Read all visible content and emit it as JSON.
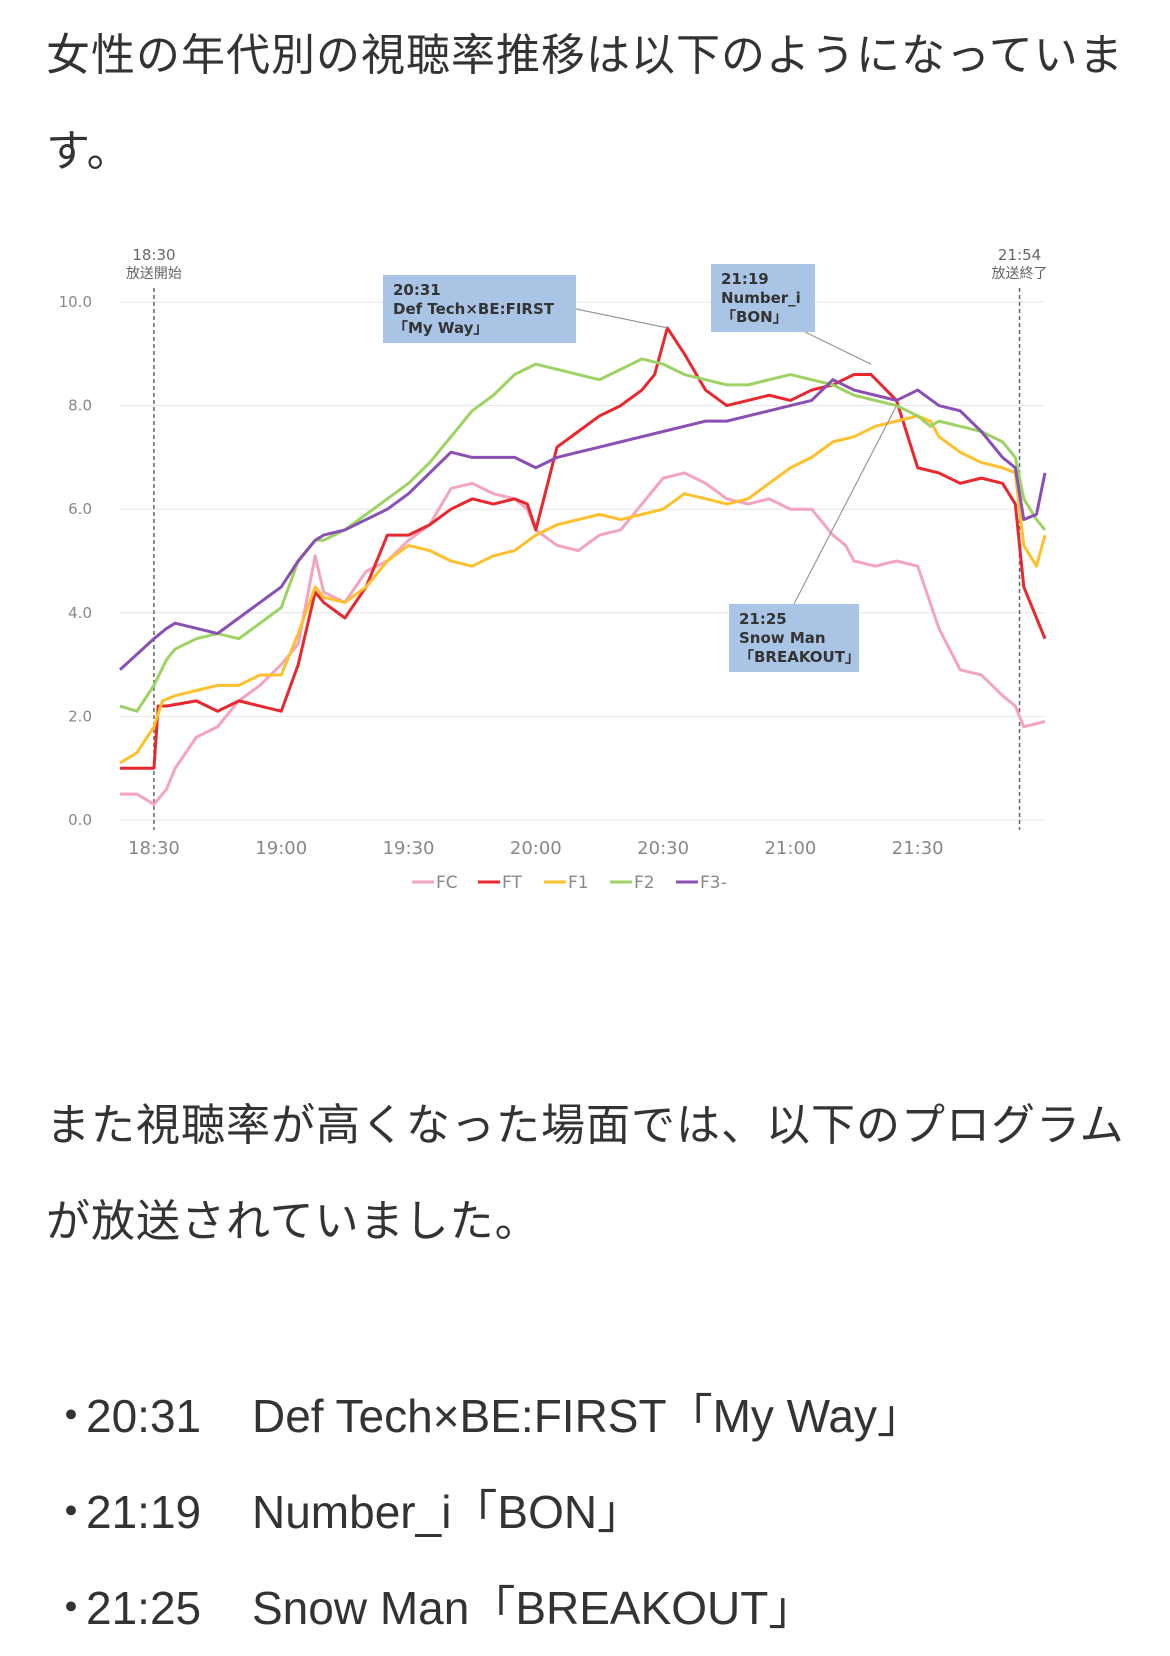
{
  "intro_text": "女性の年代別の視聴率推移は以下のようになっています。",
  "mid_text": "また視聴率が高くなった場面では、以下のプログラムが放送されていました。",
  "programs": [
    {
      "bullet": "・",
      "time": "20:31",
      "title": "Def Tech×BE:FIRST「My Way」"
    },
    {
      "bullet": "・",
      "time": "21:19",
      "title": "Number_i「BON」"
    },
    {
      "bullet": "・",
      "time": "21:25",
      "title": "Snow Man「BREAKOUT」"
    }
  ],
  "chart_data": {
    "type": "line",
    "ylim": [
      0,
      10
    ],
    "yticks": [
      "0.0",
      "2.0",
      "4.0",
      "6.0",
      "8.0",
      "10.0"
    ],
    "xticks": [
      "18:30",
      "19:00",
      "19:30",
      "20:00",
      "20:30",
      "21:00",
      "21:30"
    ],
    "x_unit": "minutes from 18:30",
    "grid": true,
    "legend_position": "bottom",
    "markers": [
      {
        "x": 0,
        "time": "18:30",
        "label": "放送開始"
      },
      {
        "x": 204,
        "time": "21:54",
        "label": "放送終了"
      }
    ],
    "annotations": [
      {
        "lines": [
          "20:31",
          "Def Tech×BE:FIRST",
          "「My Way」"
        ],
        "x": 121,
        "y": 9.5
      },
      {
        "lines": [
          "21:19",
          "Number_i",
          "「BON」"
        ],
        "x": 169,
        "y": 8.8
      },
      {
        "lines": [
          "21:25",
          "Snow Man",
          "「BREAKOUT」"
        ],
        "x": 175,
        "y": 8.0
      }
    ],
    "colors": {
      "FC": "#f4a3c0",
      "FT": "#e8282e",
      "F1": "#ffc02e",
      "F2": "#9cd363",
      "F3-": "#8a4fb3"
    },
    "series": [
      {
        "name": "FC",
        "x": [
          -8,
          -4,
          0,
          3,
          5,
          10,
          15,
          20,
          25,
          30,
          34,
          38,
          40,
          45,
          50,
          55,
          60,
          65,
          70,
          75,
          80,
          85,
          88,
          90,
          95,
          100,
          105,
          110,
          115,
          120,
          125,
          130,
          135,
          140,
          145,
          150,
          155,
          160,
          163,
          165,
          170,
          175,
          180,
          185,
          190,
          195,
          200,
          203,
          205,
          210
        ],
        "y": [
          0.5,
          0.5,
          0.3,
          0.6,
          1.0,
          1.6,
          1.8,
          2.3,
          2.6,
          3.0,
          3.4,
          5.1,
          4.4,
          4.2,
          4.8,
          5.0,
          5.4,
          5.7,
          6.4,
          6.5,
          6.3,
          6.2,
          6.0,
          5.6,
          5.3,
          5.2,
          5.5,
          5.6,
          6.1,
          6.6,
          6.7,
          6.5,
          6.2,
          6.1,
          6.2,
          6.0,
          6.0,
          5.5,
          5.3,
          5.0,
          4.9,
          5.0,
          4.9,
          3.7,
          2.9,
          2.8,
          2.4,
          2.2,
          1.8,
          1.9
        ]
      },
      {
        "name": "FT",
        "x": [
          -8,
          -4,
          0,
          1,
          3,
          10,
          15,
          20,
          25,
          30,
          34,
          38,
          40,
          45,
          50,
          55,
          60,
          65,
          70,
          75,
          80,
          85,
          88,
          90,
          95,
          100,
          105,
          110,
          115,
          118,
          121,
          125,
          130,
          135,
          140,
          145,
          150,
          155,
          160,
          165,
          169,
          175,
          180,
          185,
          190,
          195,
          200,
          203,
          205,
          210
        ],
        "y": [
          1.0,
          1.0,
          1.0,
          2.2,
          2.2,
          2.3,
          2.1,
          2.3,
          2.2,
          2.1,
          3.0,
          4.4,
          4.2,
          3.9,
          4.5,
          5.5,
          5.5,
          5.7,
          6.0,
          6.2,
          6.1,
          6.2,
          6.1,
          5.6,
          7.2,
          7.5,
          7.8,
          8.0,
          8.3,
          8.6,
          9.5,
          9.0,
          8.3,
          8.0,
          8.1,
          8.2,
          8.1,
          8.3,
          8.4,
          8.6,
          8.6,
          8.1,
          6.8,
          6.7,
          6.5,
          6.6,
          6.5,
          6.1,
          4.5,
          3.5
        ]
      },
      {
        "name": "F1",
        "x": [
          -8,
          -4,
          0,
          2,
          5,
          10,
          15,
          20,
          25,
          30,
          34,
          38,
          40,
          45,
          50,
          55,
          60,
          65,
          70,
          75,
          80,
          85,
          90,
          95,
          100,
          105,
          110,
          115,
          120,
          125,
          130,
          135,
          140,
          145,
          150,
          155,
          160,
          165,
          170,
          175,
          180,
          183,
          185,
          190,
          195,
          200,
          203,
          205,
          208,
          210
        ],
        "y": [
          1.1,
          1.3,
          1.8,
          2.3,
          2.4,
          2.5,
          2.6,
          2.6,
          2.8,
          2.8,
          3.6,
          4.5,
          4.3,
          4.2,
          4.5,
          5.0,
          5.3,
          5.2,
          5.0,
          4.9,
          5.1,
          5.2,
          5.5,
          5.7,
          5.8,
          5.9,
          5.8,
          5.9,
          6.0,
          6.3,
          6.2,
          6.1,
          6.2,
          6.5,
          6.8,
          7.0,
          7.3,
          7.4,
          7.6,
          7.7,
          7.8,
          7.7,
          7.4,
          7.1,
          6.9,
          6.8,
          6.7,
          5.3,
          4.9,
          5.5
        ]
      },
      {
        "name": "F2",
        "x": [
          -8,
          -4,
          0,
          3,
          5,
          10,
          15,
          20,
          25,
          30,
          34,
          38,
          40,
          45,
          50,
          55,
          60,
          65,
          70,
          75,
          80,
          85,
          90,
          95,
          100,
          105,
          110,
          115,
          120,
          125,
          130,
          135,
          140,
          145,
          150,
          155,
          160,
          165,
          170,
          175,
          180,
          183,
          185,
          190,
          195,
          200,
          203,
          205,
          208,
          210
        ],
        "y": [
          2.2,
          2.1,
          2.6,
          3.1,
          3.3,
          3.5,
          3.6,
          3.5,
          3.8,
          4.1,
          5.0,
          5.4,
          5.4,
          5.6,
          5.9,
          6.2,
          6.5,
          6.9,
          7.4,
          7.9,
          8.2,
          8.6,
          8.8,
          8.7,
          8.6,
          8.5,
          8.7,
          8.9,
          8.8,
          8.6,
          8.5,
          8.4,
          8.4,
          8.5,
          8.6,
          8.5,
          8.4,
          8.2,
          8.1,
          8.0,
          7.8,
          7.6,
          7.7,
          7.6,
          7.5,
          7.3,
          7.0,
          6.2,
          5.8,
          5.6
        ]
      },
      {
        "name": "F3-",
        "x": [
          -8,
          -4,
          0,
          3,
          5,
          10,
          15,
          20,
          25,
          30,
          34,
          38,
          40,
          45,
          50,
          55,
          60,
          65,
          70,
          75,
          80,
          85,
          90,
          95,
          100,
          105,
          110,
          115,
          120,
          125,
          130,
          135,
          140,
          145,
          150,
          155,
          160,
          165,
          170,
          175,
          180,
          185,
          190,
          195,
          200,
          203,
          205,
          208,
          210
        ],
        "y": [
          2.9,
          3.2,
          3.5,
          3.7,
          3.8,
          3.7,
          3.6,
          3.9,
          4.2,
          4.5,
          5.0,
          5.4,
          5.5,
          5.6,
          5.8,
          6.0,
          6.3,
          6.7,
          7.1,
          7.0,
          7.0,
          7.0,
          6.8,
          7.0,
          7.1,
          7.2,
          7.3,
          7.4,
          7.5,
          7.6,
          7.7,
          7.7,
          7.8,
          7.9,
          8.0,
          8.1,
          8.5,
          8.3,
          8.2,
          8.1,
          8.3,
          8.0,
          7.9,
          7.5,
          7.0,
          6.8,
          5.8,
          5.9,
          6.7
        ]
      }
    ]
  }
}
